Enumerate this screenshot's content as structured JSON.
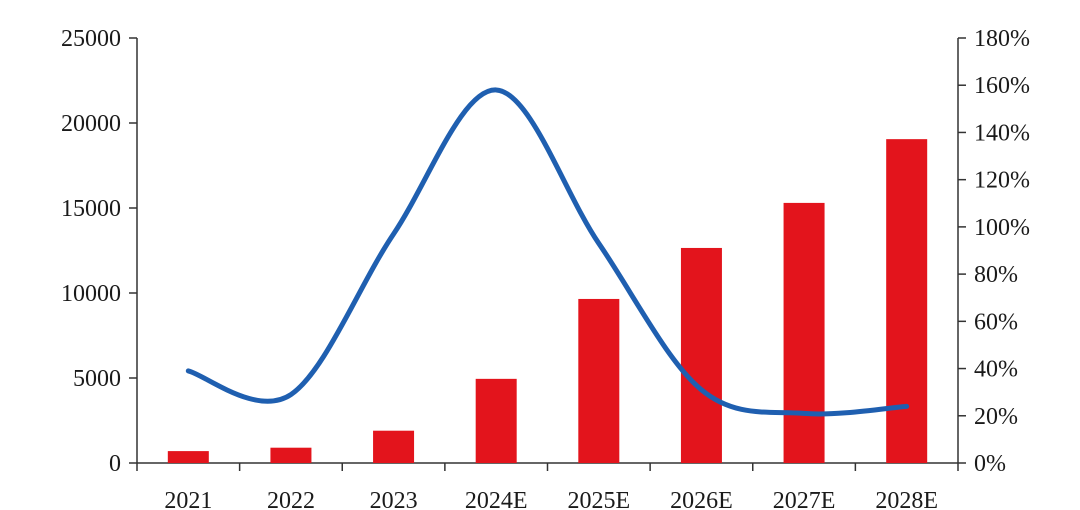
{
  "chart_data": {
    "type": "bar",
    "title": "",
    "xlabel": "",
    "ylabel": "",
    "categories": [
      "2021",
      "2022",
      "2023",
      "2024E",
      "2025E",
      "2026E",
      "2027E",
      "2028E"
    ],
    "series": [
      {
        "type": "bar",
        "axis": "left",
        "color": "#e3141c",
        "values": [
          700,
          900,
          1900,
          4950,
          9650,
          12650,
          15300,
          19050
        ]
      },
      {
        "type": "line",
        "axis": "right",
        "color": "#1f5fb0",
        "values": [
          0.39,
          0.29,
          0.97,
          1.58,
          0.93,
          0.31,
          0.21,
          0.24
        ]
      }
    ],
    "y_left": {
      "min": 0,
      "max": 25000,
      "ticks": [
        "0",
        "5000",
        "10000",
        "15000",
        "20000",
        "25000"
      ]
    },
    "y_right": {
      "min": 0,
      "max": 1.8,
      "ticks": [
        "0%",
        "20%",
        "40%",
        "60%",
        "80%",
        "100%",
        "120%",
        "140%",
        "160%",
        "180%"
      ]
    },
    "grid": false,
    "legend": "none"
  }
}
